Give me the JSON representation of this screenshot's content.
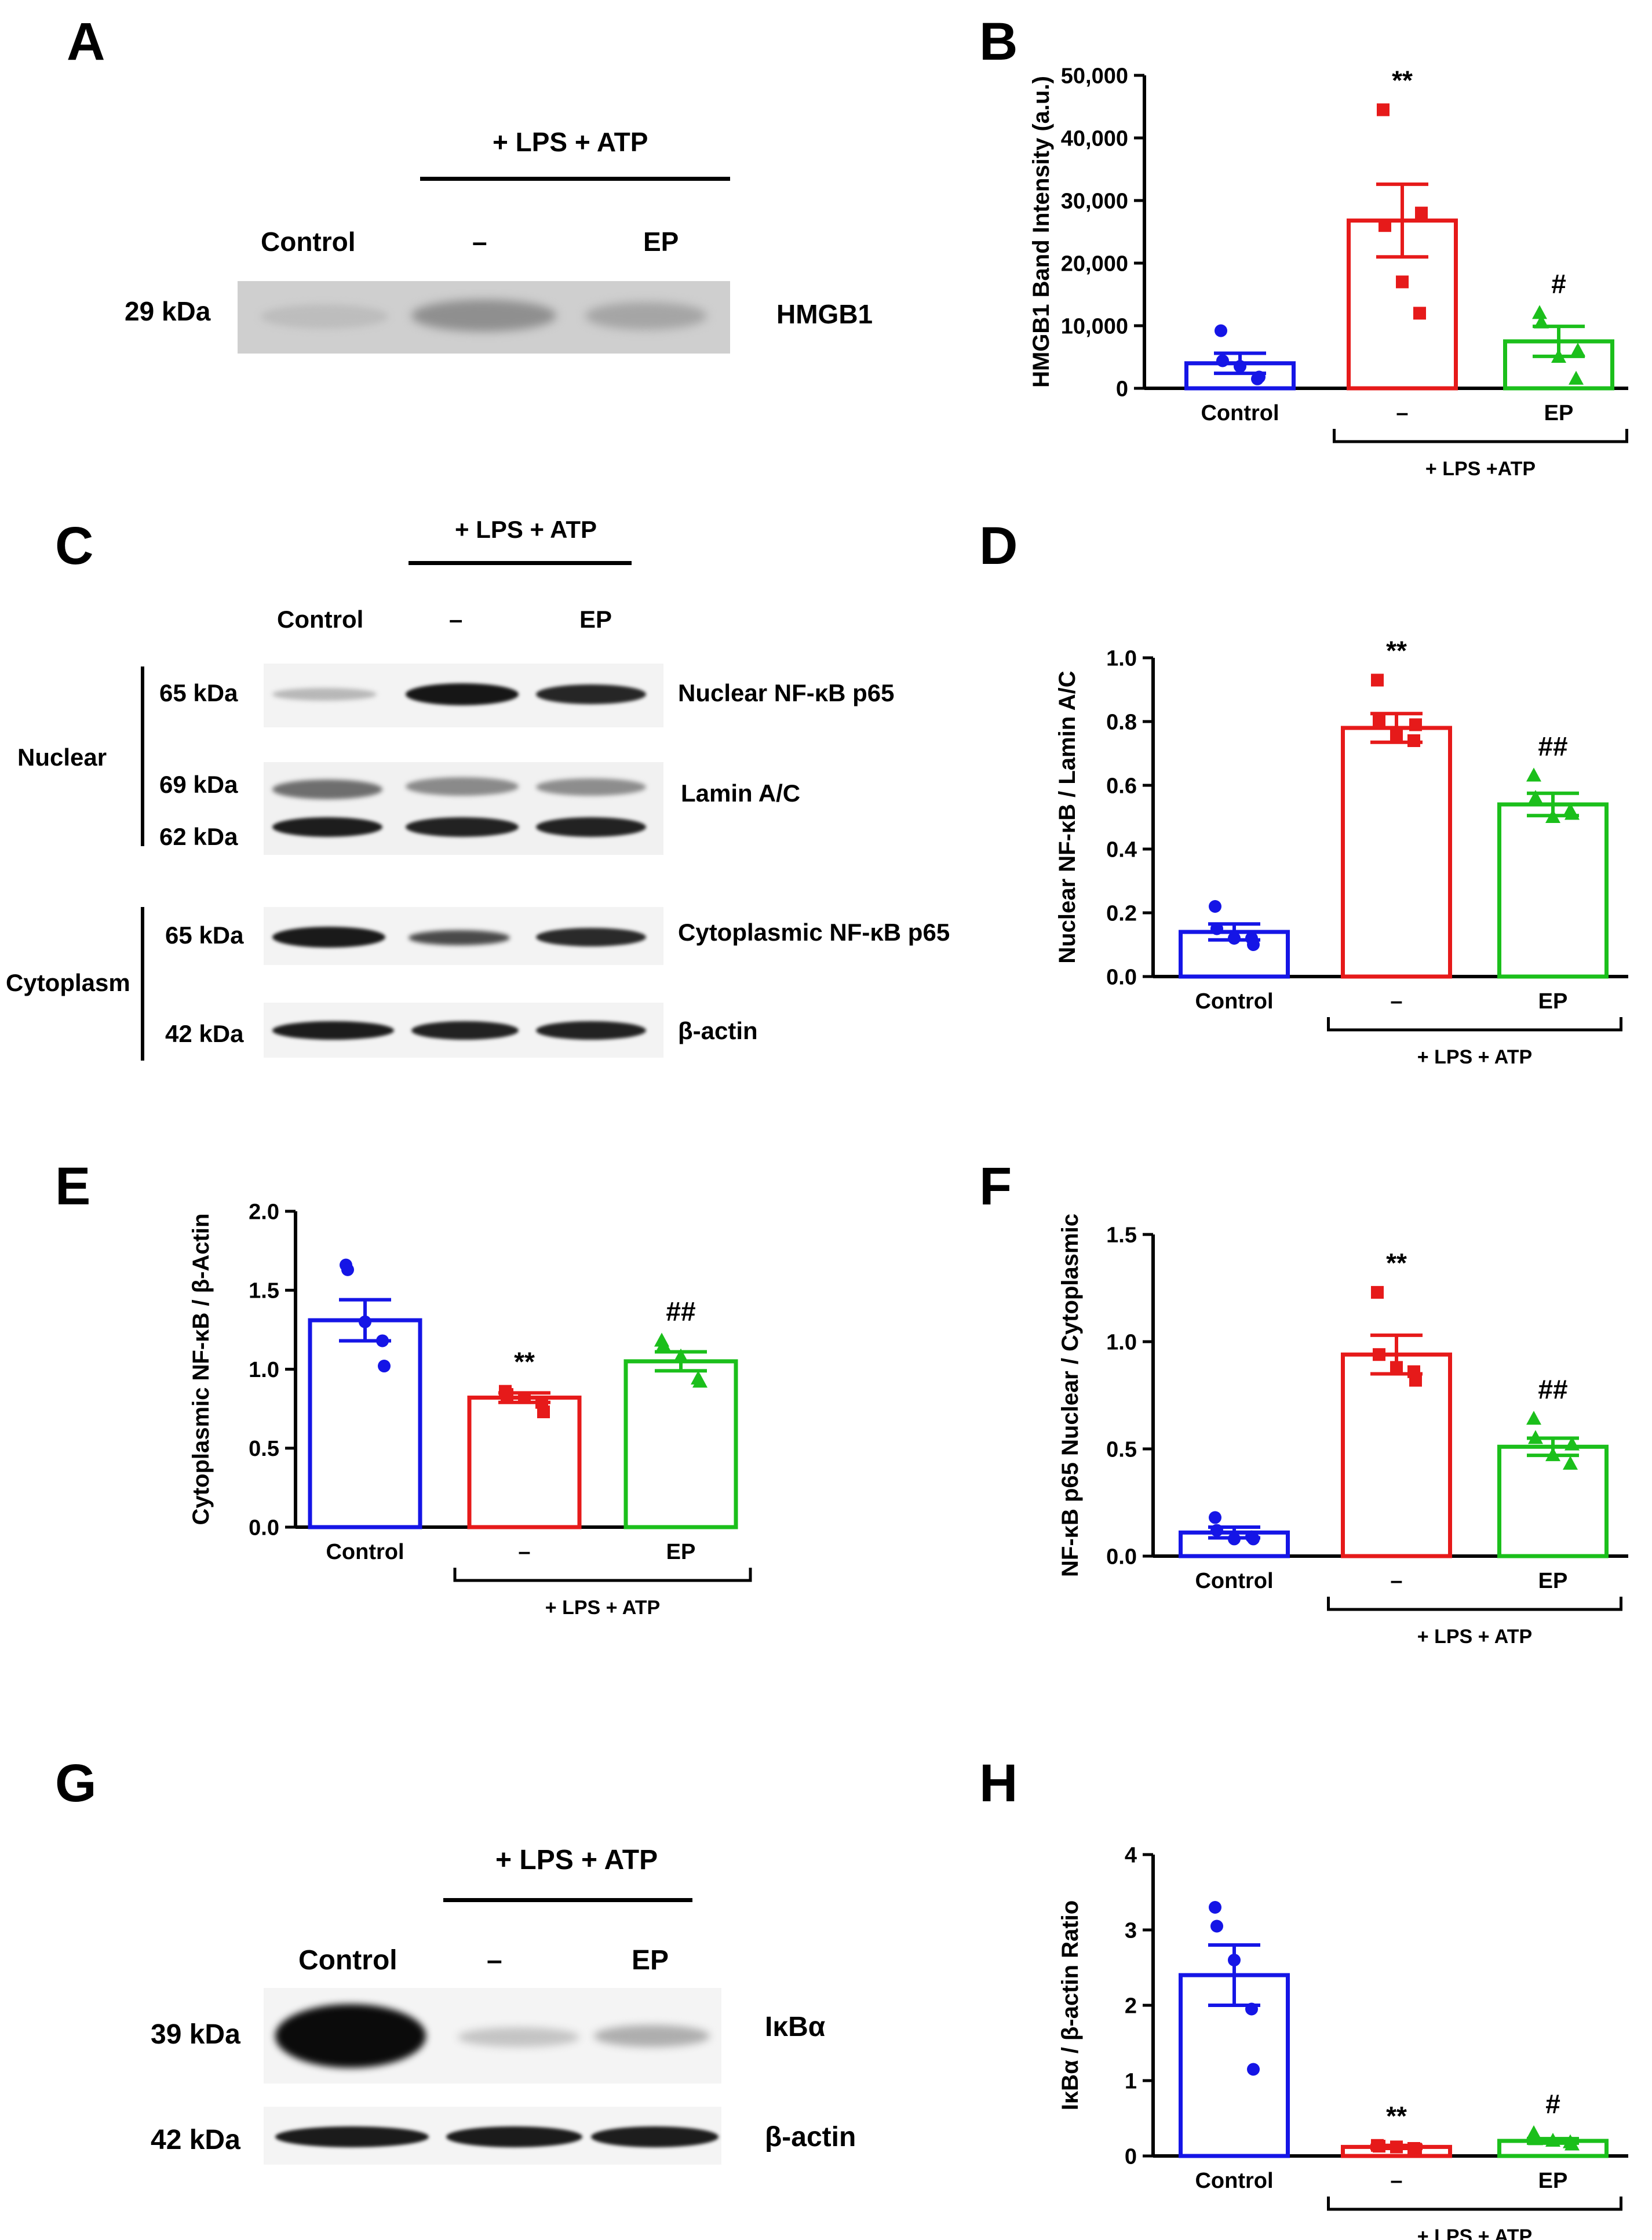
{
  "panels": {
    "A": {
      "letter": "A",
      "treatment": "+ LPS + ATP",
      "lanes": [
        "Control",
        "–",
        "EP"
      ],
      "mw": [
        "29 kDa"
      ],
      "proteins": [
        "HMGB1"
      ]
    },
    "C": {
      "letter": "C",
      "treatment": "+ LPS + ATP",
      "lanes": [
        "Control",
        "–",
        "EP"
      ],
      "fractions": [
        "Nuclear",
        "Cytoplasm"
      ],
      "mw": [
        "65 kDa",
        "69 kDa",
        "62 kDa",
        "65 kDa",
        "42 kDa"
      ],
      "proteins": [
        "Nuclear NF-κB p65",
        "Lamin A/C",
        "Cytoplasmic NF-κB p65",
        "β-actin"
      ]
    },
    "G": {
      "letter": "G",
      "treatment": "+ LPS + ATP",
      "lanes": [
        "Control",
        "–",
        "EP"
      ],
      "mw": [
        "39 kDa",
        "42 kDa"
      ],
      "proteins": [
        "IκBα",
        "β-actin"
      ]
    }
  },
  "colors": {
    "control": "#1515e6",
    "lps": "#e61a1a",
    "ep": "#1bbf1b"
  },
  "chart_data": [
    {
      "panel": "B",
      "type": "bar",
      "ylabel": "HMGB1 Band Intensity (a.u.)",
      "ylim": [
        0,
        50000
      ],
      "ticks": [
        0,
        10000,
        20000,
        30000,
        40000,
        50000
      ],
      "tick_labels": [
        "0",
        "10,000",
        "20,000",
        "30,000",
        "40,000",
        "50,000"
      ],
      "categories": [
        "Control",
        "–",
        "EP"
      ],
      "group_label": "+ LPS +ATP",
      "values": [
        4000,
        26800,
        7500
      ],
      "sem": [
        1600,
        5800,
        2400
      ],
      "points": [
        [
          9200,
          4400,
          3500,
          1500,
          1800
        ],
        [
          44500,
          26000,
          17000,
          12000,
          28000
        ],
        [
          12000,
          10500,
          5000,
          1500,
          6000
        ]
      ],
      "markers": [
        "circle",
        "square",
        "triangle"
      ],
      "significance": [
        "",
        "**",
        "#"
      ]
    },
    {
      "panel": "D",
      "type": "bar",
      "ylabel": "Nuclear NF-κB / Lamin A/C",
      "ylim": [
        0,
        1.0
      ],
      "ticks": [
        0,
        0.2,
        0.4,
        0.6,
        0.8,
        1.0
      ],
      "tick_labels": [
        "0.0",
        "0.2",
        "0.4",
        "0.6",
        "0.8",
        "1.0"
      ],
      "categories": [
        "Control",
        "–",
        "EP"
      ],
      "group_label": "+ LPS + ATP",
      "values": [
        0.14,
        0.78,
        0.54
      ],
      "sem": [
        0.025,
        0.045,
        0.035
      ],
      "points": [
        [
          0.22,
          0.15,
          0.12,
          0.12,
          0.1
        ],
        [
          0.93,
          0.8,
          0.76,
          0.74,
          0.79
        ],
        [
          0.63,
          0.56,
          0.5,
          0.52,
          0.51
        ]
      ],
      "markers": [
        "circle",
        "square",
        "triangle"
      ],
      "significance": [
        "",
        "**",
        "##"
      ]
    },
    {
      "panel": "E",
      "type": "bar",
      "ylabel": "Cytoplasmic NF-κB / β-Actin",
      "ylim": [
        0,
        2.0
      ],
      "ticks": [
        0,
        0.5,
        1.0,
        1.5,
        2.0
      ],
      "tick_labels": [
        "0.0",
        "0.5",
        "1.0",
        "1.5",
        "2.0"
      ],
      "categories": [
        "Control",
        "–",
        "EP"
      ],
      "group_label": "+ LPS + ATP",
      "values": [
        1.31,
        0.82,
        1.05
      ],
      "sem": [
        0.13,
        0.03,
        0.06
      ],
      "points": [
        [
          1.66,
          1.63,
          1.3,
          1.18,
          1.02
        ],
        [
          0.86,
          0.84,
          0.82,
          0.79,
          0.73
        ],
        [
          1.18,
          1.15,
          1.08,
          0.94,
          0.92
        ]
      ],
      "markers": [
        "circle",
        "square",
        "triangle"
      ],
      "significance": [
        "",
        "**",
        "##"
      ]
    },
    {
      "panel": "F",
      "type": "bar",
      "ylabel": "NF-κB p65 Nuclear / Cytoplasmic",
      "ylim": [
        0,
        1.5
      ],
      "ticks": [
        0,
        0.5,
        1.0,
        1.5
      ],
      "tick_labels": [
        "0.0",
        "0.5",
        "1.0",
        "1.5"
      ],
      "categories": [
        "Control",
        "–",
        "EP"
      ],
      "group_label": "+ LPS + ATP",
      "values": [
        0.11,
        0.94,
        0.51
      ],
      "sem": [
        0.025,
        0.09,
        0.04
      ],
      "points": [
        [
          0.18,
          0.12,
          0.08,
          0.09,
          0.08
        ],
        [
          1.23,
          0.94,
          0.88,
          0.86,
          0.82
        ],
        [
          0.64,
          0.55,
          0.47,
          0.43,
          0.52
        ]
      ],
      "markers": [
        "circle",
        "square",
        "triangle"
      ],
      "significance": [
        "",
        "**",
        "##"
      ]
    },
    {
      "panel": "H",
      "type": "bar",
      "ylabel": "IκBα / β-actin Ratio",
      "ylim": [
        0,
        4
      ],
      "ticks": [
        0,
        1,
        2,
        3,
        4
      ],
      "tick_labels": [
        "0",
        "1",
        "2",
        "3",
        "4"
      ],
      "categories": [
        "Control",
        "–",
        "EP"
      ],
      "group_label": "+ LPS + ATP",
      "values": [
        2.4,
        0.12,
        0.2
      ],
      "sem": [
        0.4,
        0.02,
        0.03
      ],
      "points": [
        [
          3.3,
          3.05,
          2.6,
          1.95,
          1.15
        ],
        [
          0.14,
          0.13,
          0.12,
          0.1,
          0.09
        ],
        [
          0.3,
          0.22,
          0.2,
          0.18,
          0.15
        ]
      ],
      "markers": [
        "circle",
        "square",
        "triangle"
      ],
      "significance": [
        "",
        "**",
        "#"
      ]
    }
  ]
}
